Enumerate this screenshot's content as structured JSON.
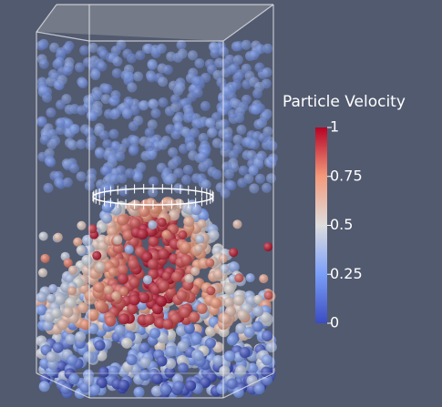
{
  "colorbar": {
    "title": "Particle Velocity",
    "range": [
      0,
      1
    ],
    "ticks": [
      0,
      0.25,
      0.5,
      0.75,
      1
    ]
  }
}
